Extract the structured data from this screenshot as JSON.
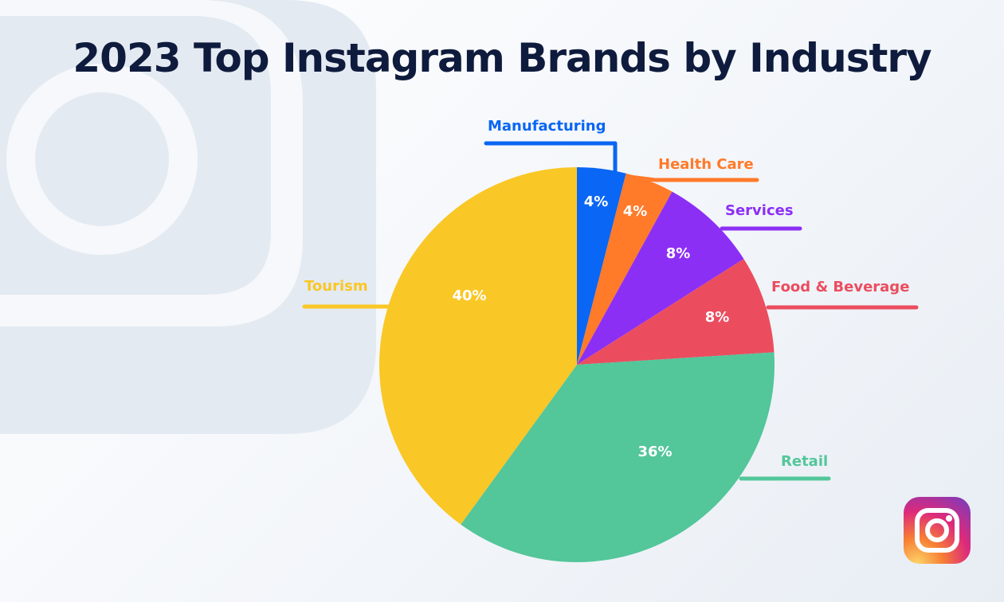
{
  "title": "2023 Top Instagram Brands by Industry",
  "chart_data": {
    "type": "pie",
    "title": "2023 Top Instagram Brands by Industry",
    "slices": [
      {
        "label": "Manufacturing",
        "value": 4,
        "display": "4%",
        "color": "#0a66f4"
      },
      {
        "label": "Health Care",
        "value": 4,
        "display": "4%",
        "color": "#ff7a29"
      },
      {
        "label": "Services",
        "value": 8,
        "display": "8%",
        "color": "#8c2ff5"
      },
      {
        "label": "Food & Beverage",
        "value": 8,
        "display": "8%",
        "color": "#eb4d5f"
      },
      {
        "label": "Retail",
        "value": 36,
        "display": "36%",
        "color": "#53c69a"
      },
      {
        "label": "Tourism",
        "value": 40,
        "display": "40%",
        "color": "#f9c726"
      }
    ],
    "start_angle": "12 o'clock",
    "direction": "clockwise"
  },
  "logo": {
    "name": "instagram-icon"
  }
}
